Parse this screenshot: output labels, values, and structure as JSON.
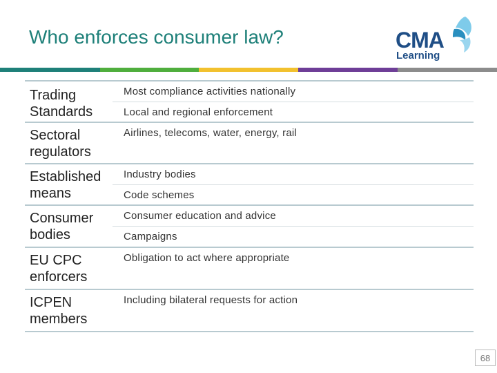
{
  "slide": {
    "title": "Who enforces consumer law?",
    "page_number": "68"
  },
  "logo": {
    "main": "CMA",
    "sub": "Learning",
    "colors": {
      "text": "#1f4e86",
      "mark_light": "#7ecbea",
      "mark_dark": "#2a8fbf"
    }
  },
  "accent_colors": [
    "#1e8079",
    "#4fae3d",
    "#f2c12e",
    "#6e3e97",
    "#8c8c8c"
  ],
  "rows": [
    {
      "label": "Trading Standards",
      "items": [
        "Most compliance activities nationally",
        "Local and regional enforcement"
      ]
    },
    {
      "label": "Sectoral regulators",
      "items": [
        "Airlines, telecoms, water, energy, rail"
      ]
    },
    {
      "label": "Established means",
      "items": [
        "Industry bodies",
        "Code schemes"
      ]
    },
    {
      "label": "Consumer bodies",
      "items": [
        "Consumer education and advice",
        "Campaigns"
      ]
    },
    {
      "label": "EU CPC enforcers",
      "items": [
        "Obligation to act where appropriate"
      ]
    },
    {
      "label": "ICPEN members",
      "items": [
        "Including bilateral requests for action"
      ]
    }
  ]
}
